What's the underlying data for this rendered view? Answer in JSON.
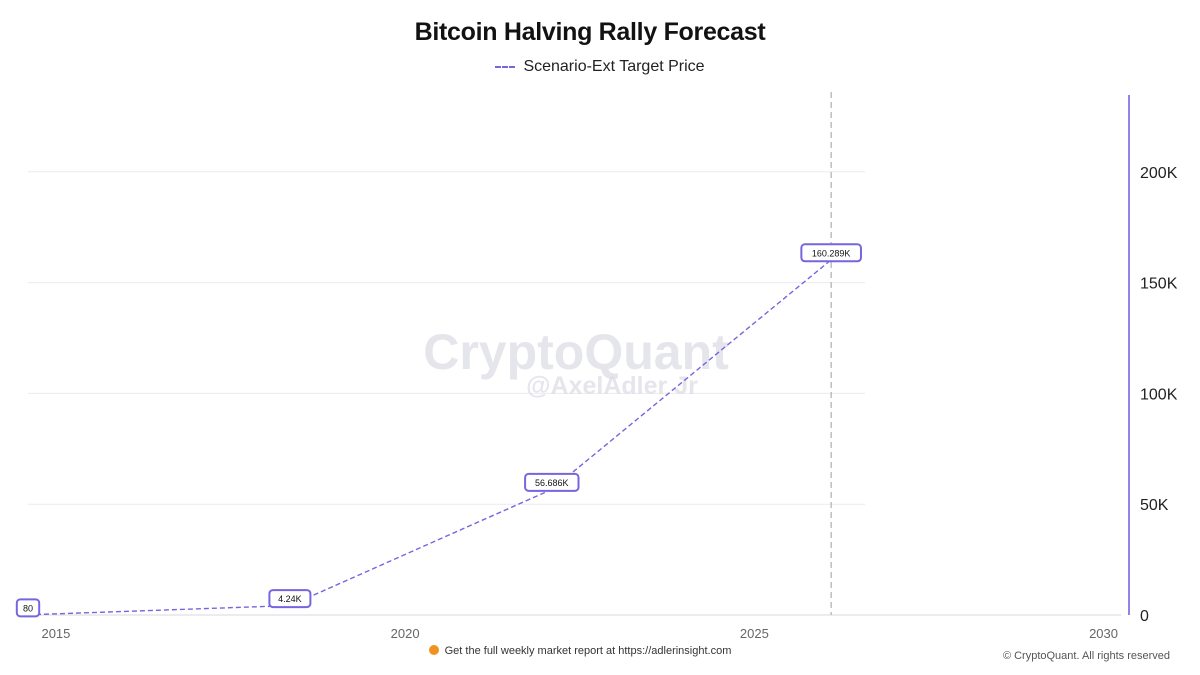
{
  "chart_data": {
    "type": "line",
    "title": "Bitcoin Halving Rally Forecast",
    "series": [
      {
        "name": "Scenario-Ext Target Price",
        "color": "#7566e0",
        "line_style": "dashed",
        "points": [
          {
            "x": 2014.6,
            "y": 80,
            "label": "80"
          },
          {
            "x": 2018.35,
            "y": 4240,
            "label": "4.24K"
          },
          {
            "x": 2022.1,
            "y": 56686,
            "label": "56.686K"
          },
          {
            "x": 2026.1,
            "y": 160289,
            "label": "160.289K"
          }
        ]
      }
    ],
    "x_ticks": [
      {
        "value": 2015,
        "label": "2015"
      },
      {
        "value": 2020,
        "label": "2020"
      },
      {
        "value": 2025,
        "label": "2025"
      },
      {
        "value": 2030,
        "label": "2030"
      }
    ],
    "y_ticks": [
      {
        "value": 0,
        "label": "0"
      },
      {
        "value": 50000,
        "label": "50K"
      },
      {
        "value": 100000,
        "label": "100K"
      },
      {
        "value": 150000,
        "label": "150K"
      },
      {
        "value": 200000,
        "label": "200K"
      }
    ],
    "xlim": [
      2014.6,
      2030.25
    ],
    "ylim": [
      0,
      236000
    ],
    "y_axis_side": "right",
    "grid": true,
    "vertical_marker_x": 2026.1,
    "legend_position": "top-center"
  },
  "watermark": {
    "line1": "CryptoQuant",
    "line2": "@AxelAdler Jr"
  },
  "footer": {
    "note": "Get the full weekly market report at https://adlerinsight.com",
    "copyright": "© CryptoQuant. All rights reserved"
  },
  "colors": {
    "series": "#7566e0",
    "grid": "#ececf0",
    "axis_line": "#7566e0",
    "marker": "#b5b5b5"
  }
}
